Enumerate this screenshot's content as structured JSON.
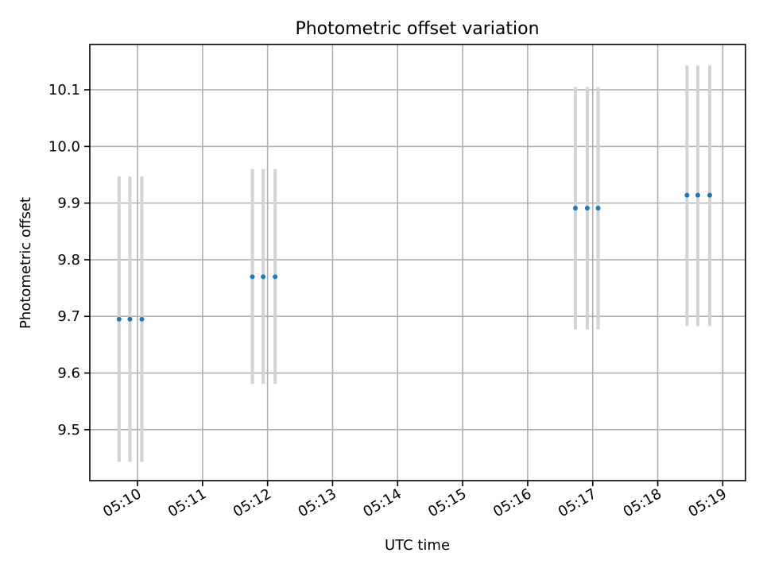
{
  "chart_data": {
    "type": "scatter",
    "title": "Photometric offset variation",
    "xlabel": "UTC time",
    "ylabel": "Photometric offset",
    "x_unit": "minutes",
    "xlim": [
      "05:09:16",
      "05:19:21"
    ],
    "ylim": [
      9.41,
      10.18
    ],
    "x_ticks": [
      "05:10",
      "05:11",
      "05:12",
      "05:13",
      "05:14",
      "05:15",
      "05:16",
      "05:17",
      "05:18",
      "05:19"
    ],
    "y_ticks": [
      "9.5",
      "9.6",
      "9.7",
      "9.8",
      "9.9",
      "10.0",
      "10.1"
    ],
    "grid": true,
    "colors": {
      "points": "#1f77b4",
      "error_bars": "#d3d3d3",
      "grid": "#b0b0b0"
    },
    "series": [
      {
        "x": [
          "05:09:43",
          "05:09:53",
          "05:10:04",
          "05:11:46",
          "05:11:56",
          "05:12:07",
          "05:16:44",
          "05:16:55",
          "05:17:05",
          "05:18:27",
          "05:18:37",
          "05:18:48"
        ],
        "y": [
          9.695,
          9.695,
          9.695,
          9.77,
          9.77,
          9.77,
          9.891,
          9.891,
          9.891,
          9.914,
          9.914,
          9.914
        ],
        "yerr_low": [
          9.443,
          9.443,
          9.443,
          9.581,
          9.581,
          9.581,
          9.677,
          9.677,
          9.677,
          9.683,
          9.683,
          9.683
        ],
        "yerr_high": [
          9.947,
          9.947,
          9.947,
          9.96,
          9.96,
          9.96,
          10.105,
          10.105,
          10.105,
          10.143,
          10.143,
          10.143
        ]
      }
    ]
  }
}
